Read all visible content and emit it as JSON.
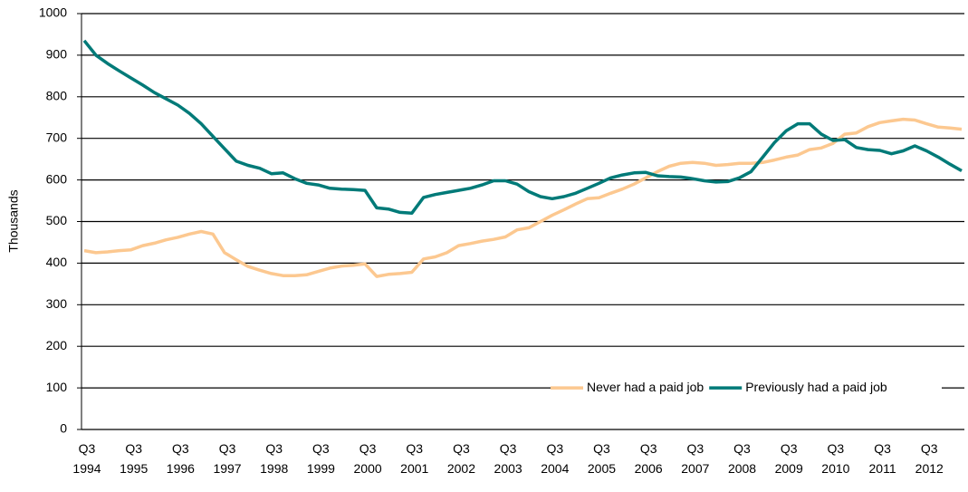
{
  "chart_data": {
    "type": "line",
    "y_label": "Thousands",
    "categories": [
      "Q3 1994",
      null,
      null,
      null,
      "Q3 1995",
      null,
      null,
      null,
      "Q3 1996",
      null,
      null,
      null,
      "Q3 1997",
      null,
      null,
      null,
      "Q3 1998",
      null,
      null,
      null,
      "Q3 1999",
      null,
      null,
      null,
      "Q3 2000",
      null,
      null,
      null,
      "Q3 2001",
      null,
      null,
      null,
      "Q3 2002",
      null,
      null,
      null,
      "Q3 2003",
      null,
      null,
      null,
      "Q3 2004",
      null,
      null,
      null,
      "Q3 2005",
      null,
      null,
      null,
      "Q3 2006",
      null,
      null,
      null,
      "Q3 2007",
      null,
      null,
      null,
      "Q3 2008",
      null,
      null,
      null,
      "Q3 2009",
      null,
      null,
      null,
      "Q3 2010",
      null,
      null,
      null,
      "Q3 2011",
      null,
      null,
      null,
      "Q3 2012",
      null,
      null,
      null
    ],
    "series": [
      {
        "name": "Never had a paid job",
        "color": "#fcc890",
        "values": [
          430,
          425,
          427,
          430,
          432,
          442,
          448,
          456,
          462,
          470,
          476,
          470,
          425,
          408,
          392,
          383,
          375,
          370,
          370,
          372,
          380,
          388,
          393,
          395,
          398,
          368,
          373,
          375,
          378,
          410,
          415,
          425,
          442,
          447,
          453,
          457,
          463,
          480,
          485,
          500,
          515,
          528,
          542,
          555,
          557,
          568,
          578,
          590,
          605,
          620,
          633,
          640,
          642,
          640,
          635,
          637,
          640,
          640,
          642,
          648,
          655,
          660,
          673,
          677,
          688,
          710,
          713,
          728,
          738,
          742,
          746,
          744,
          735,
          727,
          725,
          722
        ]
      },
      {
        "name": "Previously had a paid job",
        "color": "#007a78",
        "values": [
          935,
          900,
          880,
          862,
          845,
          828,
          810,
          795,
          780,
          760,
          735,
          705,
          675,
          645,
          635,
          628,
          615,
          617,
          603,
          592,
          588,
          580,
          578,
          577,
          575,
          533,
          530,
          522,
          520,
          558,
          565,
          570,
          575,
          580,
          588,
          598,
          598,
          590,
          572,
          560,
          555,
          560,
          568,
          580,
          592,
          605,
          612,
          617,
          618,
          610,
          608,
          607,
          603,
          598,
          595,
          596,
          605,
          620,
          655,
          690,
          718,
          735,
          735,
          710,
          695,
          697,
          678,
          673,
          671,
          663,
          670,
          682,
          670,
          655,
          638,
          622
        ]
      }
    ],
    "ylim": [
      0,
      1000
    ],
    "yticks": [
      0,
      100,
      200,
      300,
      400,
      500,
      600,
      700,
      800,
      900,
      1000
    ],
    "grid": true,
    "legend": "lower right"
  }
}
